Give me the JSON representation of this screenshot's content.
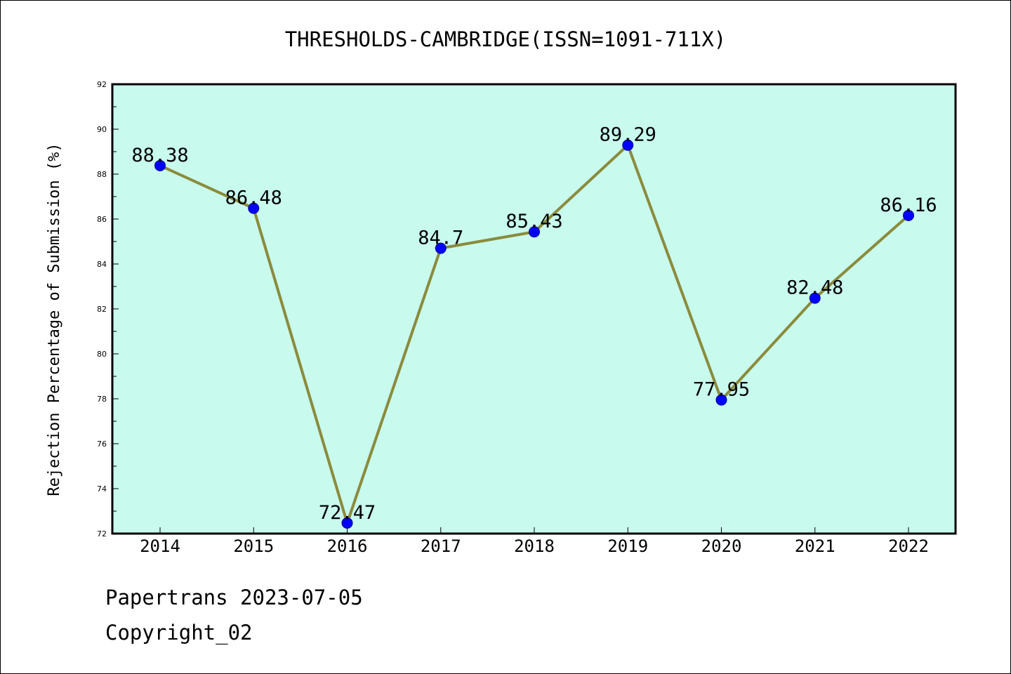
{
  "chart_data": {
    "type": "line",
    "title": "THRESHOLDS-CAMBRIDGE(ISSN=1091-711X)",
    "ylabel": "Rejection Percentage of Submission (%)",
    "xlabel": "",
    "categories": [
      "2014",
      "2015",
      "2016",
      "2017",
      "2018",
      "2019",
      "2020",
      "2021",
      "2022"
    ],
    "series": [
      {
        "values": [
          88.38,
          86.48,
          72.47,
          84.7,
          85.43,
          89.29,
          77.95,
          82.48,
          86.16
        ],
        "data_labels": [
          "88.38",
          "86.48",
          "72.47",
          "84.7",
          "85.43",
          "89.29",
          "77.95",
          "82.48",
          "86.16"
        ],
        "line_color": "#8B8B3C",
        "marker_color": "#0000FF"
      }
    ],
    "ylim": [
      72,
      92
    ],
    "yticks": [
      "72",
      "74",
      "76",
      "78",
      "80",
      "82",
      "84",
      "86",
      "88",
      "90",
      "92"
    ],
    "plot_background": "#C8FAEE",
    "grid": false,
    "legend": "none"
  },
  "footer": {
    "line1": "Papertrans 2023-07-05",
    "line2": "Copyright_02"
  }
}
